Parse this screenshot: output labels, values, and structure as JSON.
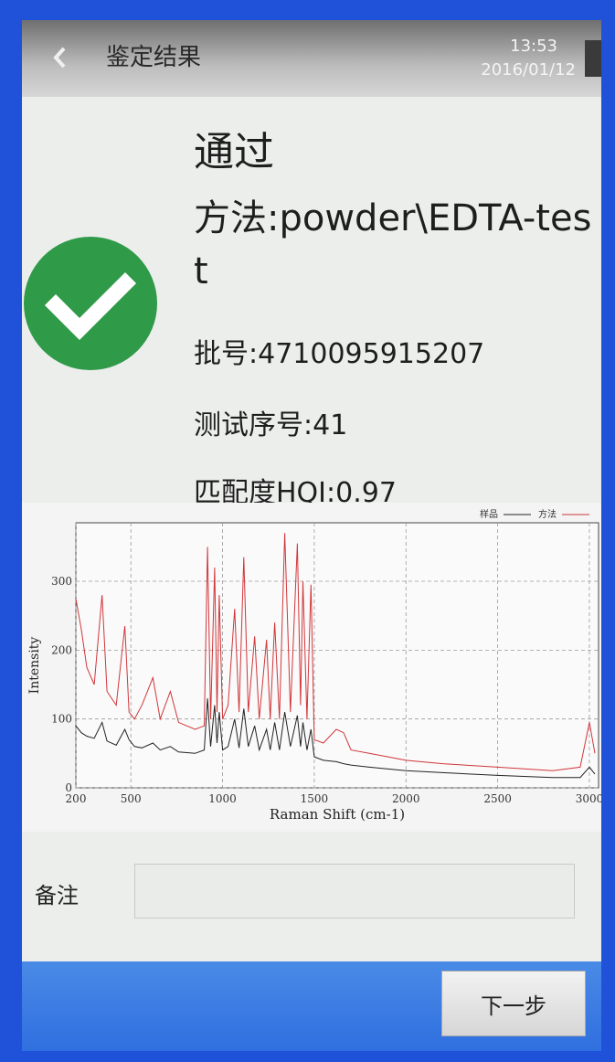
{
  "header": {
    "title": "鉴定结果",
    "time": "13:53",
    "date": "2016/01/12"
  },
  "result": {
    "status": "通过",
    "method": "方法:powder\\EDTA-test",
    "batch": "批号:4710095915207",
    "test_no": "测试序号:41",
    "hqi": "匹配度HQI:0.97"
  },
  "chart_data": {
    "type": "line",
    "xlabel": "Raman Shift (cm-1)",
    "ylabel": "Intensity",
    "x": [
      200,
      230,
      260,
      300,
      343,
      370,
      420,
      467,
      490,
      520,
      560,
      620,
      660,
      715,
      760,
      850,
      900,
      918,
      935,
      957,
      970,
      982,
      1000,
      1030,
      1066,
      1090,
      1116,
      1140,
      1175,
      1200,
      1240,
      1260,
      1284,
      1310,
      1339,
      1370,
      1408,
      1425,
      1438,
      1460,
      1482,
      1500,
      1550,
      1620,
      1660,
      1700,
      1800,
      2000,
      2200,
      2500,
      2800,
      2950,
      3000,
      3030
    ],
    "series": [
      {
        "name": "样品",
        "color": "#222222",
        "values": [
          90,
          80,
          75,
          72,
          95,
          68,
          62,
          85,
          70,
          60,
          58,
          65,
          55,
          60,
          52,
          50,
          55,
          130,
          60,
          120,
          65,
          110,
          55,
          60,
          100,
          58,
          115,
          60,
          90,
          55,
          85,
          55,
          95,
          55,
          110,
          60,
          105,
          60,
          95,
          55,
          85,
          45,
          40,
          38,
          35,
          33,
          30,
          25,
          22,
          18,
          15,
          15,
          30,
          20
        ]
      },
      {
        "name": "方法",
        "color": "#d0363a",
        "values": [
          275,
          230,
          175,
          150,
          280,
          140,
          120,
          235,
          110,
          100,
          120,
          160,
          100,
          140,
          95,
          85,
          90,
          350,
          100,
          320,
          110,
          280,
          100,
          120,
          260,
          110,
          335,
          110,
          220,
          100,
          215,
          100,
          240,
          100,
          370,
          110,
          355,
          120,
          300,
          100,
          295,
          70,
          65,
          85,
          80,
          55,
          50,
          40,
          35,
          30,
          25,
          30,
          95,
          50
        ]
      }
    ],
    "xlim": [
      200,
      3050
    ],
    "ylim": [
      0,
      385
    ],
    "xticks": [
      200,
      500,
      1000,
      1500,
      2000,
      2500,
      3000
    ],
    "yticks": [
      0,
      100,
      200,
      300
    ],
    "grid": true,
    "legend": "top-right"
  },
  "remark": {
    "label": "备注"
  },
  "button": {
    "label": "下一步"
  }
}
